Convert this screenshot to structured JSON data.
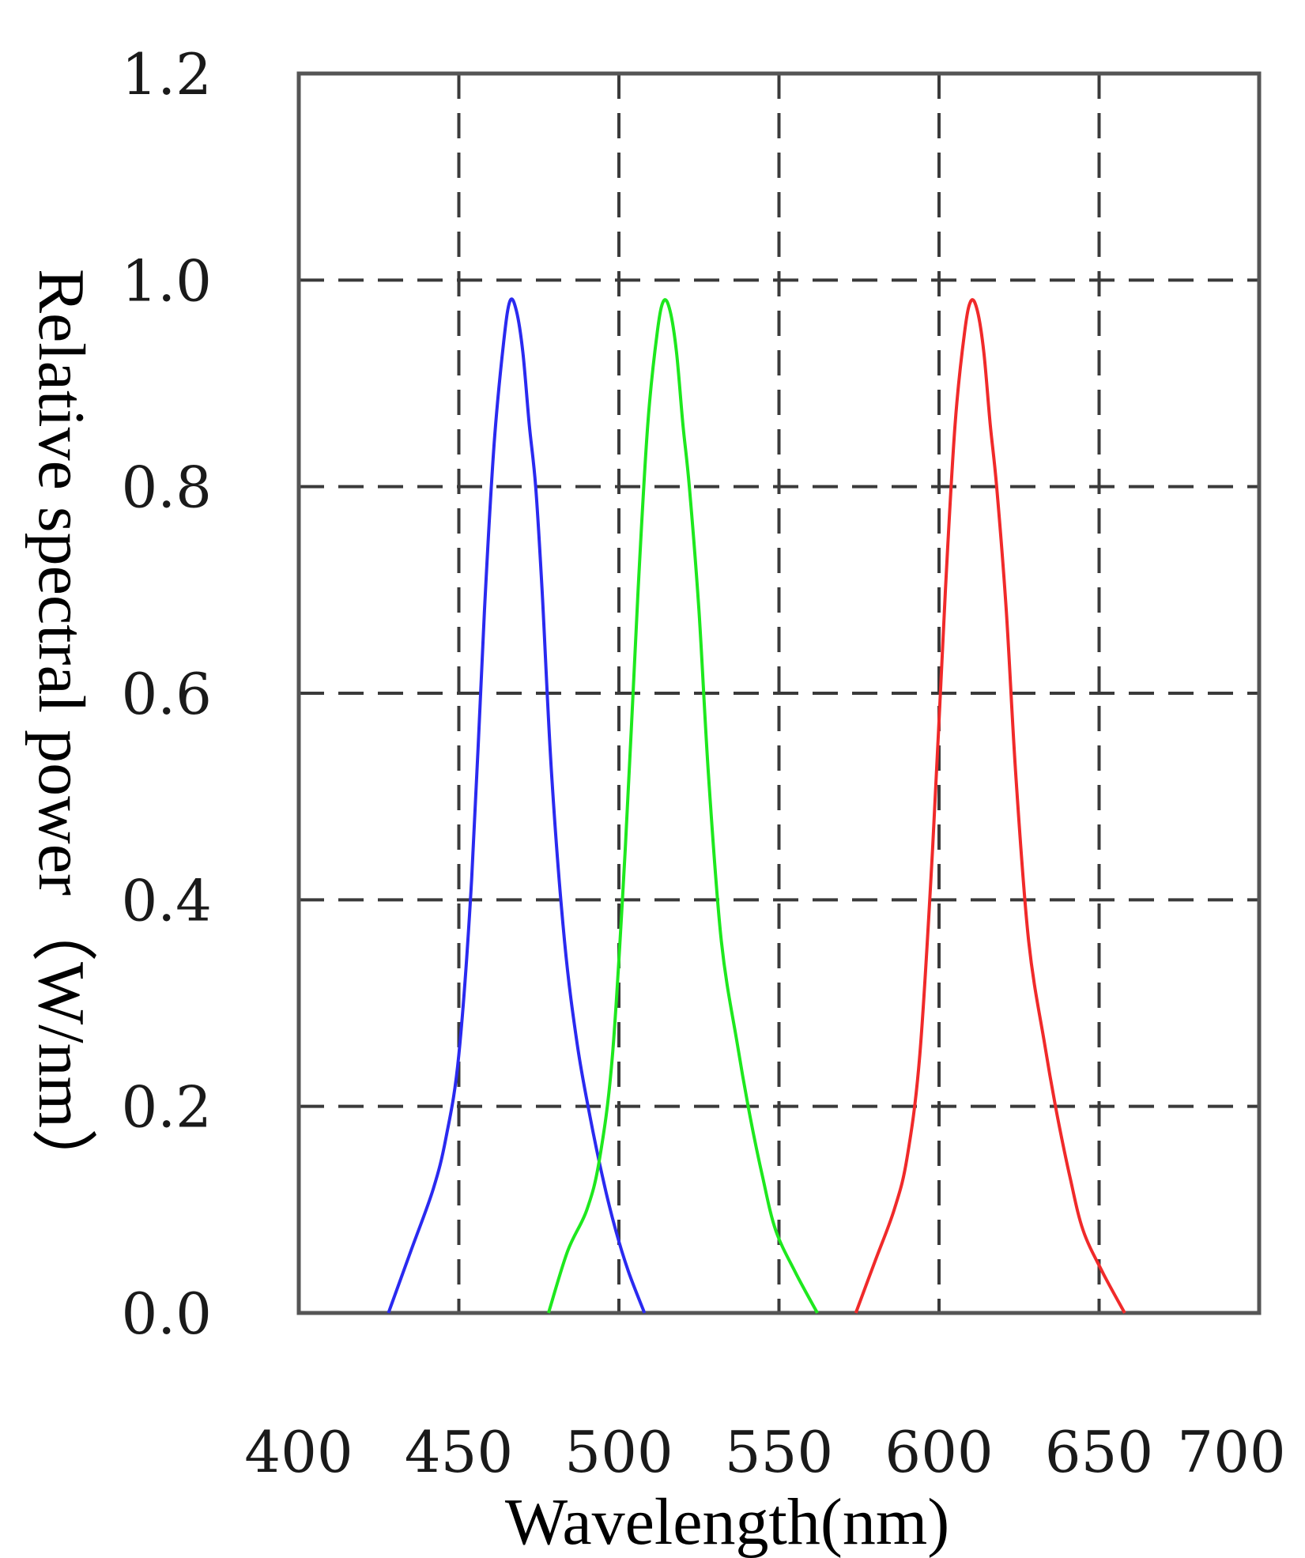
{
  "chart_data": {
    "type": "line",
    "title": "",
    "xlabel": "Wavelength(nm)",
    "ylabel": "Relative spectral power（W/nm）",
    "xlim": [
      400,
      700
    ],
    "ylim": [
      0,
      1.2
    ],
    "grid": true,
    "grid_style": "dashed",
    "legend": "none",
    "x_ticks": [
      {
        "value": 400,
        "label": "400"
      },
      {
        "value": 450,
        "label": "450"
      },
      {
        "value": 500,
        "label": "500"
      },
      {
        "value": 550,
        "label": "550"
      },
      {
        "value": 600,
        "label": "600"
      },
      {
        "value": 650,
        "label": "650"
      },
      {
        "value": 700,
        "label": "700"
      }
    ],
    "y_ticks": [
      {
        "value": 0.0,
        "label": "0.0"
      },
      {
        "value": 0.2,
        "label": "0.2"
      },
      {
        "value": 0.4,
        "label": "0.4"
      },
      {
        "value": 0.6,
        "label": "0.6"
      },
      {
        "value": 0.8,
        "label": "0.8"
      },
      {
        "value": 1.0,
        "label": "1.0"
      },
      {
        "value": 1.2,
        "label": "1.2"
      }
    ],
    "series": [
      {
        "color": "#2a2af0",
        "x": [
          428,
          435,
          442,
          446,
          450,
          454,
          458,
          461,
          464,
          466,
          468,
          470,
          472,
          474,
          476,
          479,
          483,
          487,
          491,
          495,
          499,
          503,
          508
        ],
        "y": [
          0.0,
          0.06,
          0.12,
          0.17,
          0.25,
          0.42,
          0.68,
          0.84,
          0.94,
          0.98,
          0.97,
          0.93,
          0.86,
          0.8,
          0.7,
          0.52,
          0.36,
          0.26,
          0.19,
          0.13,
          0.08,
          0.04,
          0.0
        ]
      },
      {
        "color": "#1ee81e",
        "x": [
          478,
          484,
          490,
          494,
          498,
          502,
          506,
          509,
          512,
          514,
          516,
          518,
          520,
          522,
          525,
          528,
          532,
          537,
          541,
          545,
          549,
          555,
          562
        ],
        "y": [
          0.0,
          0.06,
          0.1,
          0.15,
          0.25,
          0.45,
          0.7,
          0.86,
          0.95,
          0.98,
          0.97,
          0.93,
          0.86,
          0.8,
          0.68,
          0.52,
          0.36,
          0.26,
          0.19,
          0.13,
          0.08,
          0.04,
          0.0
        ]
      },
      {
        "color": "#f02a2a",
        "x": [
          574,
          580,
          586,
          590,
          594,
          598,
          602,
          605,
          608,
          610,
          612,
          614,
          616,
          618,
          621,
          624,
          628,
          633,
          637,
          641,
          645,
          651,
          658
        ],
        "y": [
          0.0,
          0.05,
          0.1,
          0.15,
          0.25,
          0.45,
          0.7,
          0.86,
          0.95,
          0.98,
          0.97,
          0.93,
          0.86,
          0.8,
          0.68,
          0.52,
          0.36,
          0.26,
          0.19,
          0.13,
          0.08,
          0.04,
          0.0
        ]
      }
    ]
  }
}
